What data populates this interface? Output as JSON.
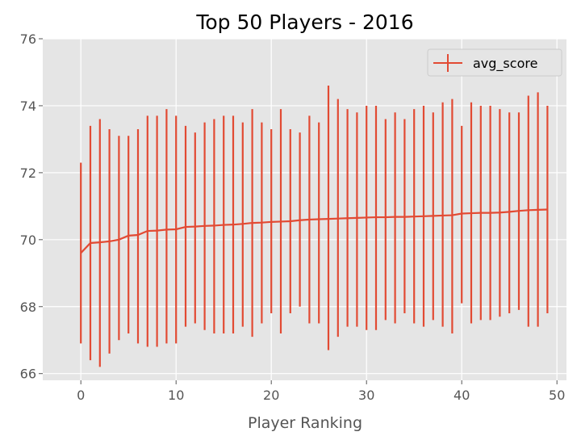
{
  "chart_data": {
    "type": "line",
    "title": "Top 50 Players - 2016",
    "xlabel": "Player Ranking",
    "ylabel": "",
    "xlim": [
      -4,
      51
    ],
    "ylim": [
      65.8,
      76
    ],
    "xticks": [
      "0",
      "10",
      "20",
      "30",
      "40",
      "50"
    ],
    "yticks": [
      "66",
      "68",
      "70",
      "72",
      "74",
      "76"
    ],
    "grid": true,
    "legend": "top-right",
    "colors": {
      "series": "#E24A33",
      "plot_bg": "#E5E5E5",
      "grid": "#FFFFFF"
    },
    "series": [
      {
        "name": "avg_score",
        "x": [
          0,
          1,
          2,
          3,
          4,
          5,
          6,
          7,
          8,
          9,
          10,
          11,
          12,
          13,
          14,
          15,
          16,
          17,
          18,
          19,
          20,
          21,
          22,
          23,
          24,
          25,
          26,
          27,
          28,
          29,
          30,
          31,
          32,
          33,
          34,
          35,
          36,
          37,
          38,
          39,
          40,
          41,
          42,
          43,
          44,
          45,
          46,
          47,
          48,
          49
        ],
        "y": [
          69.6,
          69.9,
          69.92,
          69.95,
          70.0,
          70.12,
          70.14,
          70.26,
          70.27,
          70.3,
          70.31,
          70.38,
          70.39,
          70.41,
          70.42,
          70.44,
          70.45,
          70.47,
          70.5,
          70.51,
          70.53,
          70.54,
          70.55,
          70.58,
          70.6,
          70.61,
          70.62,
          70.63,
          70.64,
          70.65,
          70.66,
          70.67,
          70.67,
          70.68,
          70.68,
          70.69,
          70.7,
          70.71,
          70.72,
          70.73,
          70.78,
          70.79,
          70.8,
          70.8,
          70.81,
          70.83,
          70.86,
          70.88,
          70.89,
          70.9
        ],
        "y_lower": [
          66.9,
          66.4,
          66.2,
          66.6,
          67.0,
          67.2,
          66.9,
          66.8,
          66.8,
          66.9,
          66.9,
          67.4,
          67.5,
          67.3,
          67.2,
          67.2,
          67.2,
          67.4,
          67.1,
          67.5,
          67.8,
          67.2,
          67.8,
          68.0,
          67.5,
          67.5,
          66.7,
          67.1,
          67.4,
          67.4,
          67.3,
          67.3,
          67.6,
          67.5,
          67.8,
          67.5,
          67.4,
          67.6,
          67.4,
          67.2,
          68.1,
          67.5,
          67.6,
          67.6,
          67.7,
          67.8,
          67.9,
          67.4,
          67.4,
          67.8
        ],
        "y_upper": [
          72.3,
          73.4,
          73.6,
          73.3,
          73.1,
          73.1,
          73.3,
          73.7,
          73.7,
          73.9,
          73.7,
          73.4,
          73.2,
          73.5,
          73.6,
          73.7,
          73.7,
          73.5,
          73.9,
          73.5,
          73.3,
          73.9,
          73.3,
          73.2,
          73.7,
          73.5,
          74.6,
          74.2,
          73.9,
          73.8,
          74.0,
          74.0,
          73.6,
          73.8,
          73.6,
          73.9,
          74.0,
          73.8,
          74.1,
          74.2,
          73.4,
          74.1,
          74.0,
          74.0,
          73.9,
          73.8,
          73.8,
          74.3,
          74.4,
          74.0
        ]
      }
    ]
  }
}
